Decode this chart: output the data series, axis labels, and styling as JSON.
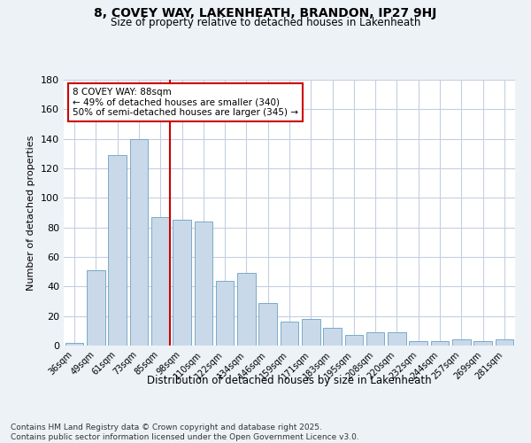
{
  "title1": "8, COVEY WAY, LAKENHEATH, BRANDON, IP27 9HJ",
  "title2": "Size of property relative to detached houses in Lakenheath",
  "xlabel": "Distribution of detached houses by size in Lakenheath",
  "ylabel": "Number of detached properties",
  "categories": [
    "36sqm",
    "49sqm",
    "61sqm",
    "73sqm",
    "85sqm",
    "98sqm",
    "110sqm",
    "122sqm",
    "134sqm",
    "146sqm",
    "159sqm",
    "171sqm",
    "183sqm",
    "195sqm",
    "208sqm",
    "220sqm",
    "232sqm",
    "244sqm",
    "257sqm",
    "269sqm",
    "281sqm"
  ],
  "values": [
    2,
    51,
    129,
    140,
    87,
    85,
    84,
    44,
    49,
    29,
    16,
    18,
    12,
    7,
    9,
    9,
    3,
    3,
    4,
    3,
    4
  ],
  "bar_color": "#c9d9ea",
  "bar_edge_color": "#7aaac8",
  "red_line_index": 4,
  "annotation_title": "8 COVEY WAY: 88sqm",
  "annotation_line1": "← 49% of detached houses are smaller (340)",
  "annotation_line2": "50% of semi-detached houses are larger (345) →",
  "vline_color": "#cc0000",
  "ylim": [
    0,
    180
  ],
  "yticks": [
    0,
    20,
    40,
    60,
    80,
    100,
    120,
    140,
    160,
    180
  ],
  "footer1": "Contains HM Land Registry data © Crown copyright and database right 2025.",
  "footer2": "Contains public sector information licensed under the Open Government Licence v3.0.",
  "bg_color": "#edf2f7",
  "plot_bg_color": "#ffffff",
  "grid_color": "#c5cfe0"
}
